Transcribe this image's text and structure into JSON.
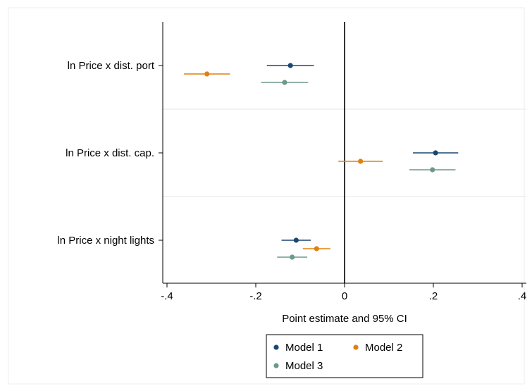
{
  "chart_data": {
    "type": "scatter",
    "subtype": "coefficient-plot",
    "title": "",
    "xlabel": "Point estimate and 95% CI",
    "ylabel": "",
    "xlim": [
      -0.42,
      0.42
    ],
    "xticks": [
      -0.4,
      -0.2,
      0,
      0.2,
      0.4
    ],
    "xtick_labels": [
      "-.4",
      "-.2",
      "0",
      ".2",
      ".4"
    ],
    "reference_line_x": 0,
    "categories": [
      "ln Price x dist. port",
      "ln Price x dist. cap.",
      "ln Price x night lights"
    ],
    "grid": "horizontal separators between categories",
    "legend_position": "bottom-center",
    "series": [
      {
        "name": "Model 1",
        "color": "#1a476f",
        "estimates": [
          -0.122,
          0.205,
          -0.109
        ],
        "ci_low": [
          -0.175,
          0.154,
          -0.142
        ],
        "ci_high": [
          -0.069,
          0.256,
          -0.076
        ]
      },
      {
        "name": "Model 2",
        "color": "#e1800f",
        "estimates": [
          -0.31,
          0.036,
          -0.063
        ],
        "ci_low": [
          -0.362,
          -0.014,
          -0.094
        ],
        "ci_high": [
          -0.258,
          0.086,
          -0.032
        ]
      },
      {
        "name": "Model 3",
        "color": "#6b9a8a",
        "estimates": [
          -0.135,
          0.198,
          -0.118
        ],
        "ci_low": [
          -0.188,
          0.146,
          -0.152
        ],
        "ci_high": [
          -0.082,
          0.25,
          -0.084
        ]
      }
    ]
  }
}
